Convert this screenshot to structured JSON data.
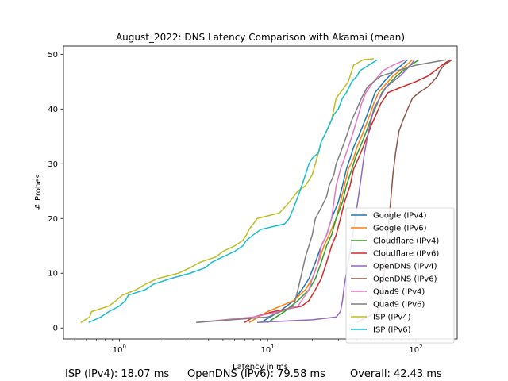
{
  "chart_data": {
    "type": "line",
    "title": "August_2022: DNS Latency Comparison with Akamai (mean)",
    "xlabel": "Latency in ms",
    "ylabel": "# Probes",
    "xscale": "log",
    "xlim": [
      0.42,
      190
    ],
    "ylim": [
      -2,
      51.5
    ],
    "xticks": [
      1,
      10,
      100
    ],
    "xtick_labels": [
      "10^0",
      "10^1",
      "10^2"
    ],
    "yticks": [
      0,
      10,
      20,
      30,
      40,
      50
    ],
    "grid": false,
    "legend_position": "lower-right",
    "series": [
      {
        "name": "Google (IPv4)",
        "color": "#1f77b4",
        "points": [
          [
            9,
            1
          ],
          [
            12,
            3
          ],
          [
            15,
            5
          ],
          [
            17,
            7
          ],
          [
            19,
            9
          ],
          [
            21,
            12
          ],
          [
            23,
            15
          ],
          [
            25,
            17
          ],
          [
            27,
            20
          ],
          [
            30,
            23
          ],
          [
            32,
            26
          ],
          [
            34,
            29
          ],
          [
            36,
            31
          ],
          [
            38,
            33
          ],
          [
            41,
            35
          ],
          [
            44,
            37
          ],
          [
            47,
            39
          ],
          [
            50,
            41
          ],
          [
            53,
            43
          ],
          [
            57,
            44
          ],
          [
            61,
            45
          ],
          [
            66,
            46
          ],
          [
            72,
            47
          ],
          [
            80,
            48
          ],
          [
            88,
            49
          ]
        ]
      },
      {
        "name": "Google (IPv6)",
        "color": "#ff7f0e",
        "points": [
          [
            7.5,
            1
          ],
          [
            10,
            3
          ],
          [
            15,
            5
          ],
          [
            18,
            7
          ],
          [
            20,
            9
          ],
          [
            22,
            12
          ],
          [
            24,
            15
          ],
          [
            26,
            17
          ],
          [
            29,
            20
          ],
          [
            31,
            23
          ],
          [
            33,
            26
          ],
          [
            35,
            29
          ],
          [
            38,
            31
          ],
          [
            40,
            33
          ],
          [
            43,
            35
          ],
          [
            46,
            37
          ],
          [
            49,
            39
          ],
          [
            52,
            41
          ],
          [
            56,
            43
          ],
          [
            60,
            44
          ],
          [
            65,
            45
          ],
          [
            70,
            46
          ],
          [
            78,
            47
          ],
          [
            86,
            48
          ],
          [
            95,
            49
          ]
        ]
      },
      {
        "name": "Cloudflare (IPv4)",
        "color": "#2ca02c",
        "points": [
          [
            10,
            1
          ],
          [
            13,
            3
          ],
          [
            16,
            5
          ],
          [
            19,
            7
          ],
          [
            21,
            9
          ],
          [
            23,
            12
          ],
          [
            25,
            15
          ],
          [
            27,
            17
          ],
          [
            29,
            20
          ],
          [
            32,
            23
          ],
          [
            34,
            26
          ],
          [
            37,
            29
          ],
          [
            39,
            31
          ],
          [
            42,
            33
          ],
          [
            45,
            35
          ],
          [
            48,
            37
          ],
          [
            51,
            39
          ],
          [
            55,
            41
          ],
          [
            59,
            43
          ],
          [
            63,
            44
          ],
          [
            68,
            45
          ],
          [
            74,
            46
          ],
          [
            82,
            47
          ],
          [
            92,
            48
          ],
          [
            105,
            49
          ]
        ]
      },
      {
        "name": "Cloudflare (IPv6)",
        "color": "#d62728",
        "points": [
          [
            7,
            1
          ],
          [
            8,
            2
          ],
          [
            11,
            3
          ],
          [
            17,
            4
          ],
          [
            19,
            5
          ],
          [
            21,
            7
          ],
          [
            23,
            9
          ],
          [
            25,
            12
          ],
          [
            27,
            15
          ],
          [
            29,
            17
          ],
          [
            31,
            20
          ],
          [
            33,
            23
          ],
          [
            36,
            26
          ],
          [
            38,
            29
          ],
          [
            41,
            31
          ],
          [
            44,
            33
          ],
          [
            47,
            35
          ],
          [
            50,
            37
          ],
          [
            54,
            39
          ],
          [
            58,
            41
          ],
          [
            65,
            43
          ],
          [
            80,
            44
          ],
          [
            100,
            45
          ],
          [
            120,
            46
          ],
          [
            135,
            47
          ],
          [
            150,
            48
          ],
          [
            170,
            49
          ]
        ]
      },
      {
        "name": "OpenDNS (IPv4)",
        "color": "#9467bd",
        "points": [
          [
            8.5,
            1
          ],
          [
            20,
            1.5
          ],
          [
            29,
            2
          ],
          [
            31,
            3
          ],
          [
            32,
            5
          ],
          [
            33,
            8
          ],
          [
            35,
            12
          ],
          [
            37,
            16
          ],
          [
            39,
            20
          ],
          [
            41,
            24
          ],
          [
            43,
            28
          ],
          [
            45,
            32
          ],
          [
            48,
            36
          ],
          [
            52,
            40
          ],
          [
            57,
            42
          ],
          [
            63,
            44
          ],
          [
            70,
            45
          ],
          [
            78,
            46
          ],
          [
            85,
            47
          ],
          [
            92,
            48
          ],
          [
            98,
            49
          ]
        ]
      },
      {
        "name": "OpenDNS (IPv6)",
        "color": "#8c564b",
        "points": [
          [
            40,
            1
          ],
          [
            55,
            3
          ],
          [
            58,
            5
          ],
          [
            60,
            8
          ],
          [
            62,
            12
          ],
          [
            64,
            16
          ],
          [
            66,
            20
          ],
          [
            68,
            24
          ],
          [
            70,
            28
          ],
          [
            73,
            32
          ],
          [
            77,
            36
          ],
          [
            82,
            38
          ],
          [
            88,
            40
          ],
          [
            95,
            42
          ],
          [
            105,
            43
          ],
          [
            120,
            44
          ],
          [
            130,
            45
          ],
          [
            140,
            46
          ],
          [
            145,
            47
          ],
          [
            155,
            48
          ],
          [
            175,
            49
          ]
        ]
      },
      {
        "name": "Quad9 (IPv4)",
        "color": "#e377c2",
        "points": [
          [
            3.3,
            1
          ],
          [
            8,
            2
          ],
          [
            12,
            3
          ],
          [
            16,
            4
          ],
          [
            17,
            5
          ],
          [
            19,
            7
          ],
          [
            20,
            9
          ],
          [
            22,
            12
          ],
          [
            23,
            15
          ],
          [
            25,
            17
          ],
          [
            27,
            20
          ],
          [
            28,
            23
          ],
          [
            29,
            26
          ],
          [
            31,
            29
          ],
          [
            33,
            31
          ],
          [
            35,
            33
          ],
          [
            37,
            35
          ],
          [
            39,
            37
          ],
          [
            41,
            39
          ],
          [
            43,
            41
          ],
          [
            46,
            43
          ],
          [
            52,
            45
          ],
          [
            60,
            47
          ],
          [
            70,
            48
          ],
          [
            85,
            49
          ]
        ]
      },
      {
        "name": "Quad9 (IPv6)",
        "color": "#7f7f7f",
        "points": [
          [
            3.3,
            1
          ],
          [
            10,
            2
          ],
          [
            15,
            4
          ],
          [
            16,
            7
          ],
          [
            17,
            10
          ],
          [
            18,
            13
          ],
          [
            19,
            15
          ],
          [
            20,
            17
          ],
          [
            21,
            20
          ],
          [
            23,
            22
          ],
          [
            25,
            24
          ],
          [
            26,
            26
          ],
          [
            28,
            28
          ],
          [
            29,
            30
          ],
          [
            31,
            32
          ],
          [
            33,
            34
          ],
          [
            35,
            36
          ],
          [
            37,
            38
          ],
          [
            40,
            40
          ],
          [
            43,
            42
          ],
          [
            47,
            44
          ],
          [
            52,
            45
          ],
          [
            58,
            46
          ],
          [
            75,
            47
          ],
          [
            100,
            48
          ],
          [
            160,
            49
          ]
        ]
      },
      {
        "name": "ISP (IPv4)",
        "color": "#bcbd22",
        "points": [
          [
            0.55,
            1
          ],
          [
            0.63,
            2
          ],
          [
            0.65,
            3
          ],
          [
            0.85,
            4
          ],
          [
            0.95,
            5
          ],
          [
            1.05,
            6
          ],
          [
            1.3,
            7
          ],
          [
            1.5,
            8
          ],
          [
            1.8,
            9
          ],
          [
            2.5,
            10
          ],
          [
            3,
            11
          ],
          [
            3.5,
            12
          ],
          [
            4.5,
            13
          ],
          [
            5,
            14
          ],
          [
            6,
            15
          ],
          [
            6.8,
            16
          ],
          [
            7.2,
            17
          ],
          [
            7.5,
            18
          ],
          [
            8,
            19
          ],
          [
            8.5,
            20
          ],
          [
            12,
            21
          ],
          [
            13,
            22
          ],
          [
            14,
            23
          ],
          [
            15,
            24
          ],
          [
            16,
            25
          ],
          [
            18,
            26
          ],
          [
            19,
            27
          ],
          [
            20,
            28
          ],
          [
            21,
            30
          ],
          [
            22,
            32
          ],
          [
            23,
            34
          ],
          [
            25,
            36
          ],
          [
            26,
            37
          ],
          [
            27,
            38
          ],
          [
            28,
            40
          ],
          [
            29,
            42
          ],
          [
            31,
            43
          ],
          [
            33,
            44
          ],
          [
            35,
            45
          ],
          [
            36,
            46
          ],
          [
            37,
            47
          ],
          [
            38,
            48
          ],
          [
            44,
            49
          ],
          [
            52,
            49.2
          ]
        ]
      },
      {
        "name": "ISP (IPv6)",
        "color": "#17becf",
        "points": [
          [
            0.62,
            1
          ],
          [
            0.75,
            2
          ],
          [
            0.85,
            3
          ],
          [
            1,
            4
          ],
          [
            1.1,
            5
          ],
          [
            1.15,
            6
          ],
          [
            1.5,
            7
          ],
          [
            1.7,
            8
          ],
          [
            2.2,
            9
          ],
          [
            3,
            10
          ],
          [
            3.8,
            11
          ],
          [
            4.2,
            12
          ],
          [
            5,
            13
          ],
          [
            6,
            14
          ],
          [
            6.8,
            15
          ],
          [
            7.2,
            16
          ],
          [
            8,
            17
          ],
          [
            9,
            18
          ],
          [
            13,
            19
          ],
          [
            14,
            20
          ],
          [
            15,
            22
          ],
          [
            16,
            24
          ],
          [
            17,
            26
          ],
          [
            18,
            28
          ],
          [
            19,
            30
          ],
          [
            20,
            31
          ],
          [
            22,
            32
          ],
          [
            23,
            34
          ],
          [
            24,
            35
          ],
          [
            25,
            36
          ],
          [
            27,
            38
          ],
          [
            28,
            39
          ],
          [
            30,
            40
          ],
          [
            32,
            42
          ],
          [
            34,
            43
          ],
          [
            37,
            45
          ],
          [
            40,
            46
          ],
          [
            42,
            47
          ],
          [
            48,
            48
          ],
          [
            55,
            49
          ]
        ]
      }
    ]
  },
  "summary": {
    "isp_ipv4": "ISP (IPv4): 18.07 ms",
    "opendns_ipv6": "OpenDNS (IPv6): 79.58 ms",
    "overall": "Overall: 42.43 ms"
  }
}
